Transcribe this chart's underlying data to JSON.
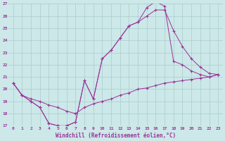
{
  "xlabel": "Windchill (Refroidissement éolien,°C)",
  "bg_color": "#cce8e8",
  "grid_color": "#aacccc",
  "line_color": "#993399",
  "xlim": [
    -0.5,
    23.5
  ],
  "ylim": [
    17,
    27
  ],
  "yticks": [
    17,
    18,
    19,
    20,
    21,
    22,
    23,
    24,
    25,
    26,
    27
  ],
  "xticks": [
    0,
    1,
    2,
    3,
    4,
    5,
    6,
    7,
    8,
    9,
    10,
    11,
    12,
    13,
    14,
    15,
    16,
    17,
    18,
    19,
    20,
    21,
    22,
    23
  ],
  "line1_x": [
    0,
    1,
    2,
    3,
    4,
    5,
    6,
    7,
    8,
    9,
    10,
    11,
    12,
    13,
    14,
    15,
    16,
    17,
    18,
    19,
    20,
    21,
    22,
    23
  ],
  "line1_y": [
    20.5,
    19.5,
    19.2,
    19.0,
    18.7,
    18.5,
    18.2,
    18.0,
    18.5,
    18.8,
    19.0,
    19.2,
    19.5,
    19.7,
    20.0,
    20.1,
    20.3,
    20.5,
    20.6,
    20.7,
    20.8,
    20.9,
    21.0,
    21.2
  ],
  "line2_x": [
    0,
    1,
    2,
    3,
    4,
    5,
    6,
    7,
    8,
    9,
    10,
    11,
    12,
    13,
    14,
    15,
    16,
    17,
    18,
    19,
    20,
    21,
    22,
    23
  ],
  "line2_y": [
    20.5,
    19.5,
    19.0,
    18.5,
    17.2,
    17.0,
    17.0,
    17.3,
    20.7,
    19.2,
    22.5,
    23.2,
    24.2,
    25.2,
    25.5,
    26.7,
    27.2,
    26.8,
    22.3,
    22.0,
    21.5,
    21.2,
    21.0,
    21.2
  ],
  "line3_x": [
    0,
    1,
    2,
    3,
    4,
    5,
    6,
    7,
    8,
    9,
    10,
    11,
    12,
    13,
    14,
    15,
    16,
    17,
    18,
    19,
    20,
    21,
    22,
    23
  ],
  "line3_y": [
    20.5,
    19.5,
    19.0,
    18.5,
    17.2,
    17.0,
    17.0,
    17.3,
    20.7,
    19.2,
    22.5,
    23.2,
    24.2,
    25.2,
    25.5,
    26.0,
    26.5,
    26.5,
    24.8,
    23.5,
    22.5,
    21.8,
    21.3,
    21.2
  ]
}
